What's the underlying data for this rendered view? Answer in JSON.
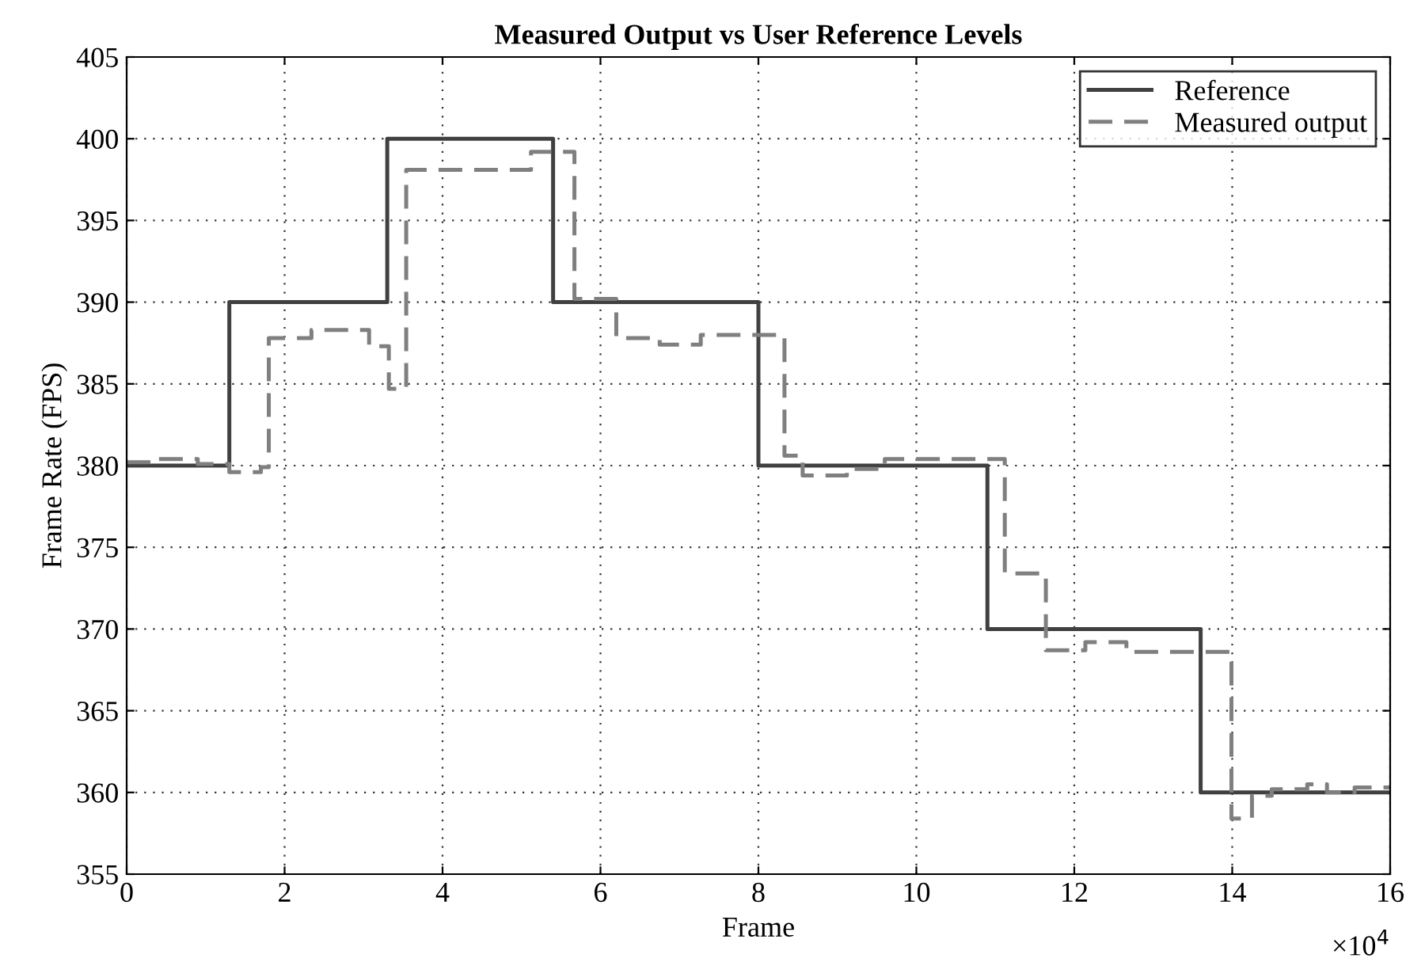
{
  "chart_data": {
    "type": "step",
    "title": "Measured Output vs User Reference Levels",
    "xlabel": "Frame",
    "ylabel": "Frame Rate (FPS)",
    "annotations": [
      "×10$^{4}$"
    ],
    "xlim": [
      0,
      16
    ],
    "xticks": [
      0,
      2,
      4,
      6,
      8,
      10,
      12,
      14,
      16
    ],
    "ylim": [
      355,
      405
    ],
    "yticks": [
      355,
      360,
      365,
      370,
      375,
      380,
      385,
      390,
      395,
      400,
      405
    ],
    "grid": true,
    "legend": "top right",
    "series": [
      {
        "name": "Reference",
        "color": "#404040",
        "line_style": "solid",
        "x": [
          0,
          1.3,
          3.3,
          5.4,
          8.0,
          10.9,
          13.6,
          16
        ],
        "values": [
          380,
          390,
          400,
          390,
          380,
          370,
          360,
          360
        ]
      },
      {
        "name": "Measured output",
        "color": "#7f7f7f",
        "line_style": "dashed",
        "x": [
          0,
          0.4,
          0.9,
          1.3,
          1.7,
          1.8,
          2.34,
          3.07,
          3.32,
          3.54,
          5.12,
          5.67,
          6.2,
          6.75,
          7.27,
          8.33,
          8.56,
          9.12,
          9.6,
          11.12,
          11.64,
          12.14,
          12.66,
          13.99,
          14.25,
          14.5,
          14.95,
          15.2,
          15.55,
          16
        ],
        "values": [
          380.2,
          380.4,
          380.1,
          379.6,
          379.9,
          387.8,
          388.3,
          387.3,
          384.7,
          398.1,
          399.2,
          390.2,
          387.8,
          387.4,
          388.0,
          380.6,
          379.4,
          379.8,
          380.4,
          373.4,
          368.7,
          369.2,
          368.6,
          358.4,
          359.8,
          360.2,
          360.5,
          360.0,
          360.3,
          360.3
        ]
      }
    ]
  }
}
